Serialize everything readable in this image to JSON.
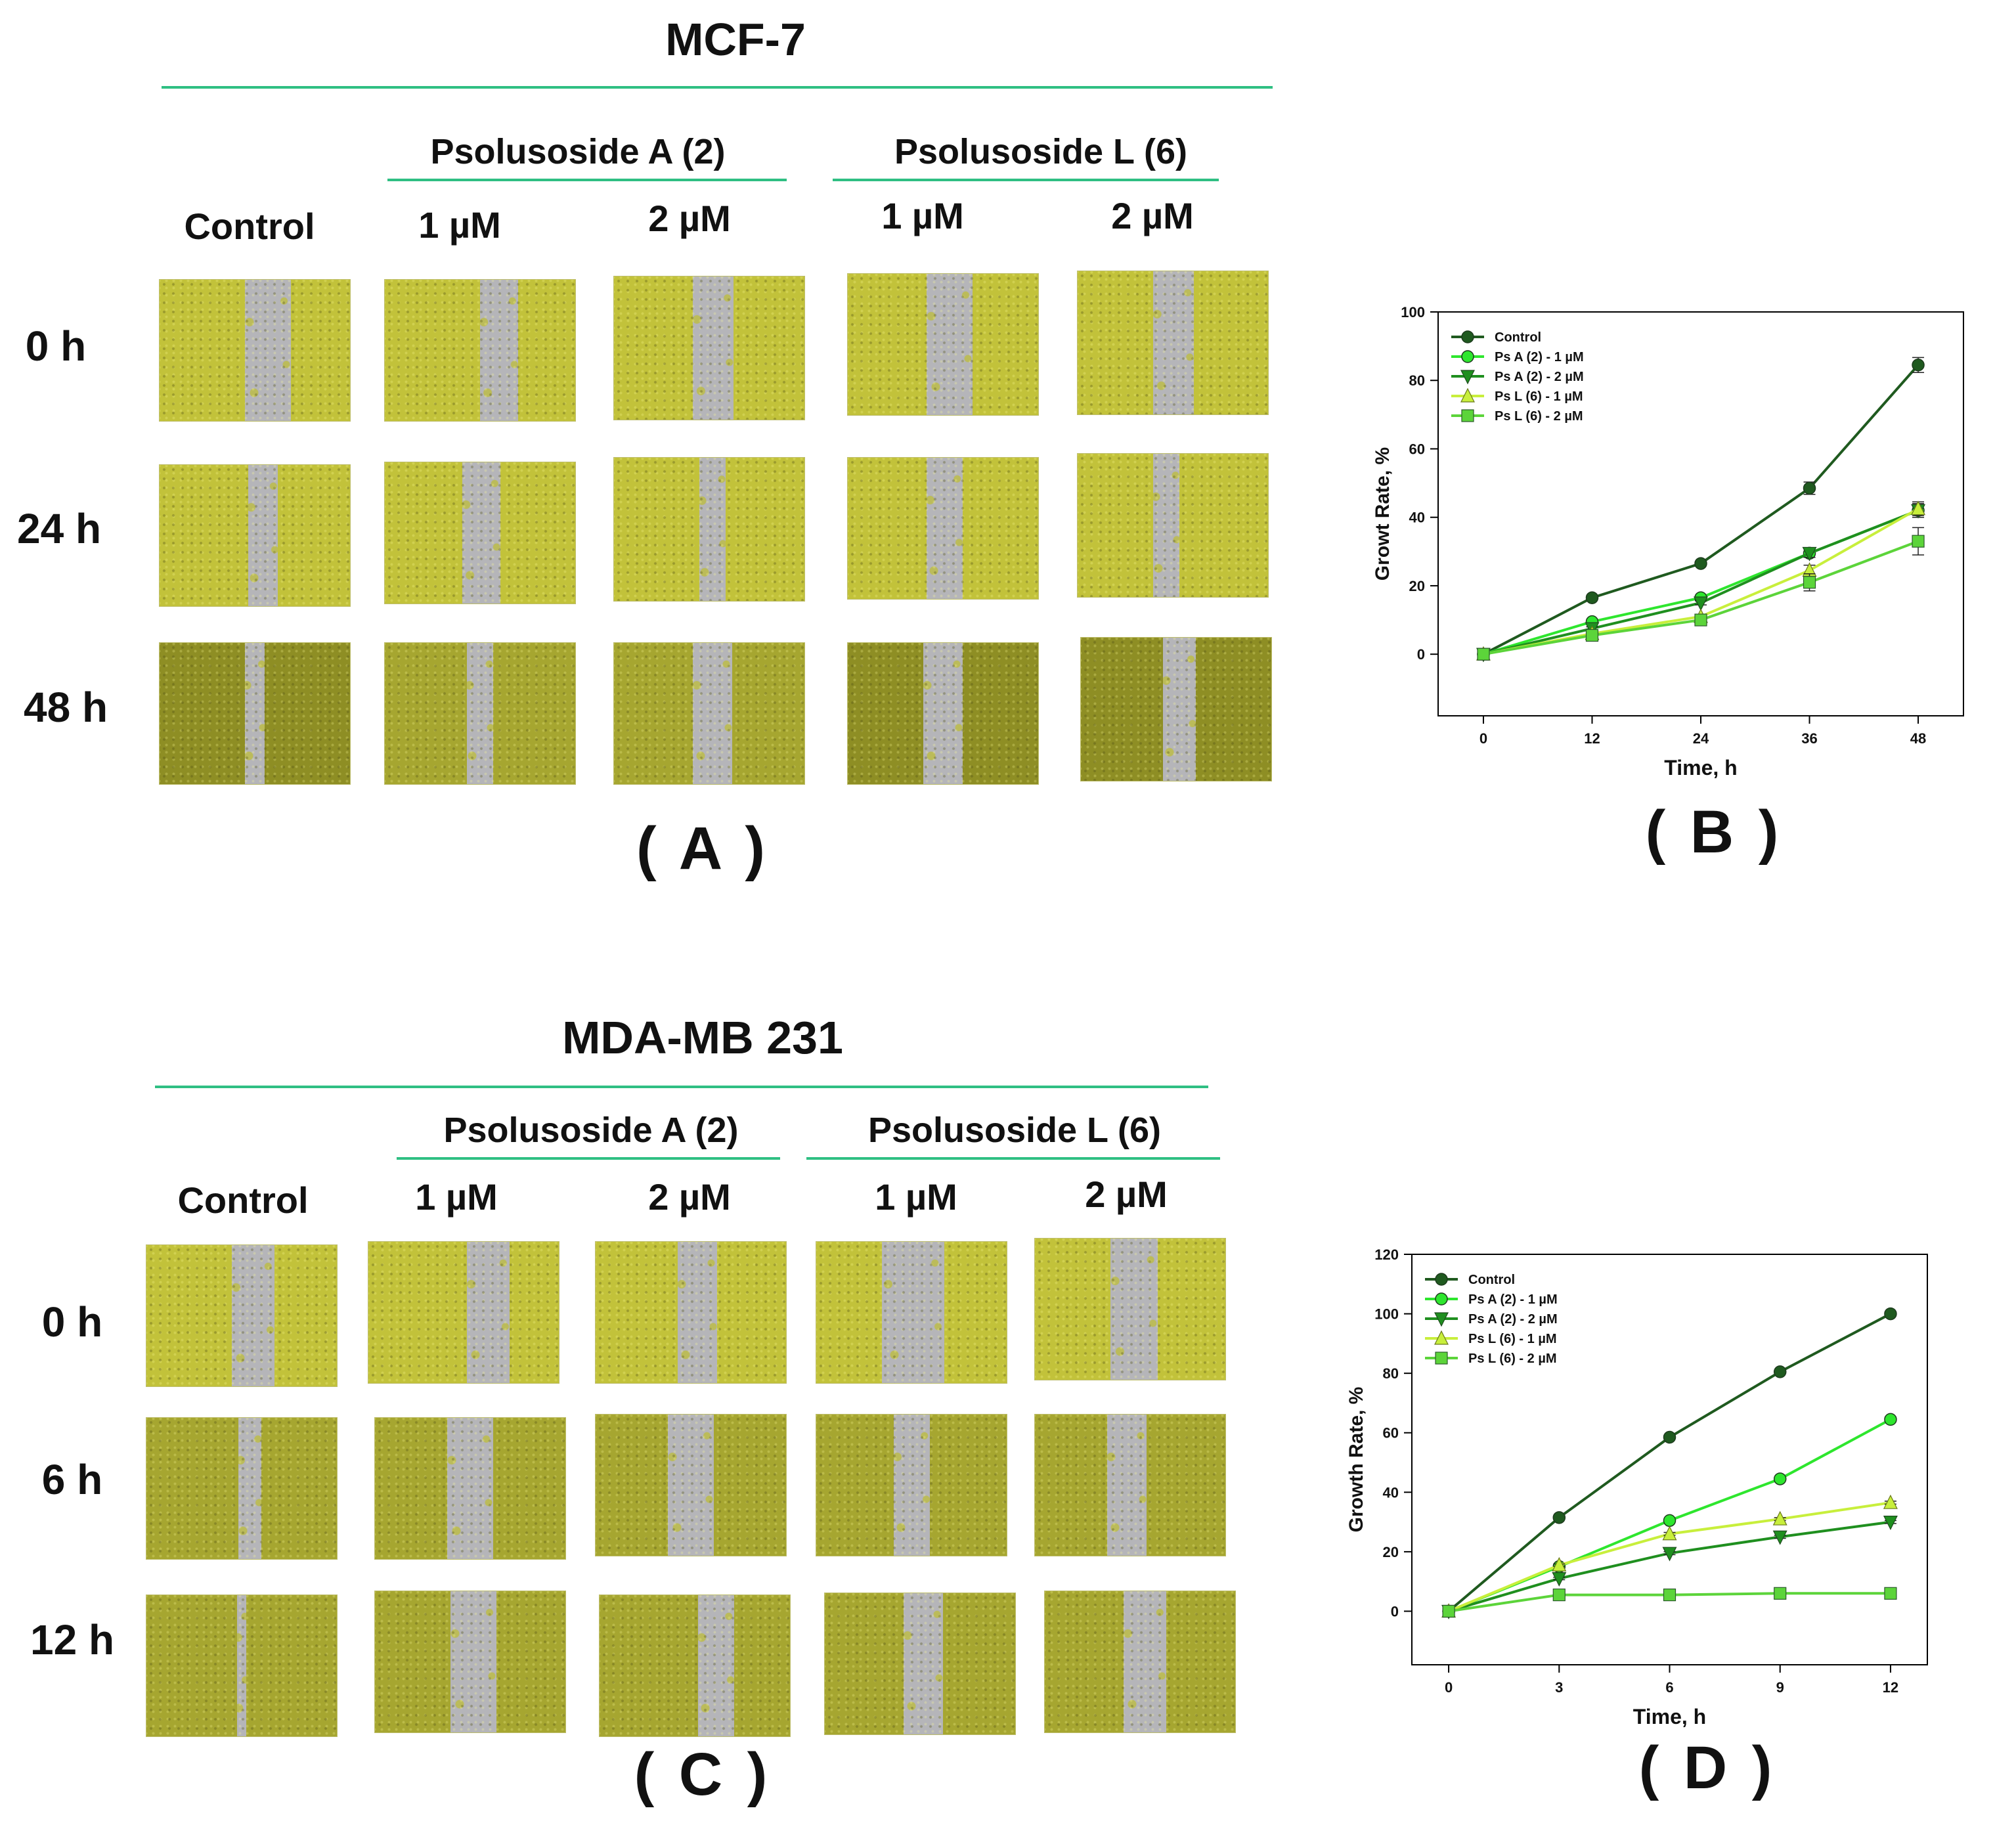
{
  "top": {
    "title": "MCF-7",
    "group_a": "Psolusoside A (2)",
    "group_l": "Psolusoside L (6)",
    "columns": [
      "Control",
      "1 µM",
      "2 µM",
      "1 µM",
      "2 µM"
    ],
    "rows": [
      "0 h",
      "24 h",
      "48 h"
    ],
    "panel_label": "( A )"
  },
  "bottom": {
    "title": "MDA-MB 231",
    "group_a": "Psolusoside A (2)",
    "group_l": "Psolusoside L (6)",
    "columns": [
      "Control",
      "1 µM",
      "2 µM",
      "1 µM",
      "2 µM"
    ],
    "rows": [
      "0 h",
      "6 h",
      "12 h"
    ],
    "panel_label": "( C )"
  },
  "chart_data": [
    {
      "type": "line",
      "panel_label": "( B )",
      "xlabel": "Time, h",
      "ylabel": "Growt Rate, %",
      "x": [
        0,
        12,
        24,
        36,
        48
      ],
      "xlim": [
        -5,
        53
      ],
      "ylim": [
        -18,
        100
      ],
      "yticks": [
        0,
        20,
        40,
        60,
        80,
        100
      ],
      "legend_position": "top-left",
      "series": [
        {
          "name": "Control",
          "marker": "circle",
          "color": "#1f5a1f",
          "values": [
            0,
            16.5,
            26.5,
            48.5,
            84.5
          ],
          "errors": [
            0,
            0.5,
            0.6,
            1.8,
            2.2
          ]
        },
        {
          "name": "Ps A (2) - 1 µM",
          "marker": "circle",
          "color": "#2ee62e",
          "values": [
            0,
            9.5,
            16.5,
            29.5,
            42
          ],
          "errors": [
            0,
            0.5,
            0.6,
            1.2,
            2.0
          ]
        },
        {
          "name": "Ps A (2) - 2 µM",
          "marker": "triangle-down",
          "color": "#1f8f1f",
          "values": [
            0,
            7.5,
            15,
            29.5,
            42
          ],
          "errors": [
            0,
            0.5,
            0.6,
            1.2,
            2.0
          ]
        },
        {
          "name": "Ps L (6) - 1 µM",
          "marker": "triangle-up",
          "color": "#c8ef3c",
          "values": [
            0,
            6,
            11,
            24.5,
            42.5
          ],
          "errors": [
            0,
            0.5,
            0.6,
            1.5,
            2.0
          ]
        },
        {
          "name": "Ps L (6) - 2 µM",
          "marker": "square",
          "color": "#5cd43a",
          "values": [
            0,
            5.5,
            10,
            21,
            33
          ],
          "errors": [
            0,
            0.5,
            0.6,
            2.5,
            4.0
          ]
        }
      ]
    },
    {
      "type": "line",
      "panel_label": "( D )",
      "xlabel": "Time, h",
      "ylabel": "Growth Rate, %",
      "x": [
        0,
        3,
        6,
        9,
        12
      ],
      "xlim": [
        -1,
        13
      ],
      "ylim": [
        -18,
        120
      ],
      "yticks": [
        0,
        20,
        40,
        60,
        80,
        100,
        120
      ],
      "legend_position": "top-left",
      "series": [
        {
          "name": "Control",
          "marker": "circle",
          "color": "#1f5a1f",
          "values": [
            0,
            31.5,
            58.5,
            80.5,
            100
          ],
          "errors": [
            0,
            0.4,
            0.5,
            0.5,
            0.5
          ]
        },
        {
          "name": "Ps A (2) - 1 µM",
          "marker": "circle",
          "color": "#2ee62e",
          "values": [
            0,
            15,
            30.5,
            44.5,
            64.5
          ],
          "errors": [
            0,
            0.4,
            0.5,
            0.5,
            0.8
          ]
        },
        {
          "name": "Ps A (2) - 2 µM",
          "marker": "triangle-down",
          "color": "#1f8f1f",
          "values": [
            0,
            11,
            19.5,
            25,
            30
          ],
          "errors": [
            0,
            0.4,
            0.5,
            0.5,
            0.5
          ]
        },
        {
          "name": "Ps L (6) - 1 µM",
          "marker": "triangle-up",
          "color": "#c8ef3c",
          "values": [
            0,
            15.5,
            26,
            31,
            36.5
          ],
          "errors": [
            0,
            0.4,
            0.5,
            0.5,
            0.5
          ]
        },
        {
          "name": "Ps L (6) - 2 µM",
          "marker": "square",
          "color": "#5cd43a",
          "values": [
            0,
            5.5,
            5.5,
            6,
            6
          ],
          "errors": [
            0,
            0.3,
            0.3,
            0.3,
            0.3
          ]
        }
      ]
    }
  ]
}
